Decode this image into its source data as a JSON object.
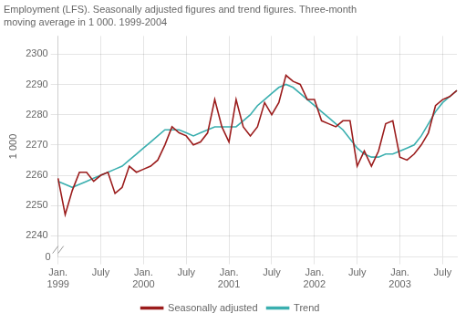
{
  "chart_data": {
    "type": "line",
    "title": "Employment (LFS). Seasonally adjusted figures and trend figures. Three-month",
    "subtitle": "moving average in 1 000. 1999-2004",
    "ylabel": "1 000",
    "annotations": [
      {
        "text": "0"
      }
    ],
    "categories": [
      "Jan.\n1999",
      null,
      null,
      null,
      null,
      null,
      "July",
      null,
      null,
      null,
      null,
      null,
      "Jan.\n2000",
      null,
      null,
      null,
      null,
      null,
      "July",
      null,
      null,
      null,
      null,
      null,
      "Jan.\n2001",
      null,
      null,
      null,
      null,
      null,
      "July",
      null,
      null,
      null,
      null,
      null,
      "Jan.\n2002",
      null,
      null,
      null,
      null,
      null,
      "July",
      null,
      null,
      null,
      null,
      null,
      "Jan.\n2003",
      null,
      null,
      null,
      null,
      null,
      "July",
      null,
      null
    ],
    "series": [
      {
        "name": "Seasonally adjusted",
        "color": "#9B1C1C",
        "marker": "none",
        "values": [
          2259,
          2247,
          2255,
          2261,
          2261,
          2258,
          2260,
          2261,
          2254,
          2256,
          2263,
          2261,
          2262,
          2263,
          2265,
          2270,
          2276,
          2274,
          2273,
          2270,
          2271,
          2274,
          2285,
          2276,
          2271,
          2285,
          2276,
          2273,
          2276,
          2284,
          2280,
          2284,
          2293,
          2291,
          2290,
          2285,
          2285,
          2278,
          2277,
          2276,
          2278,
          2278,
          2263,
          2268,
          2263,
          2268,
          2277,
          2278,
          2266,
          2265,
          2267,
          2270,
          2274,
          2283,
          2285,
          2286,
          2288
        ]
      },
      {
        "name": "Trend",
        "color": "#3AAFAF",
        "marker": "none",
        "values": [
          2258,
          2257,
          2256,
          2257,
          2258,
          2259,
          2260,
          2261,
          2262,
          2263,
          2265,
          2267,
          2269,
          2271,
          2273,
          2275,
          2275,
          2275,
          2274,
          2273,
          2274,
          2275,
          2276,
          2276,
          2276,
          2276,
          2278,
          2280,
          2283,
          2285,
          2287,
          2289,
          2290,
          2289,
          2287,
          2285,
          2283,
          2281,
          2279,
          2277,
          2275,
          2272,
          2269,
          2267,
          2266,
          2266,
          2267,
          2267,
          2268,
          2269,
          2270,
          2273,
          2277,
          2281,
          2284,
          2286,
          2288
        ]
      }
    ],
    "ylim": [
      2233,
      2306
    ],
    "yticks": [
      2240,
      2250,
      2260,
      2270,
      2280,
      2290,
      2300
    ],
    "grid": true,
    "legend": "bottom"
  }
}
